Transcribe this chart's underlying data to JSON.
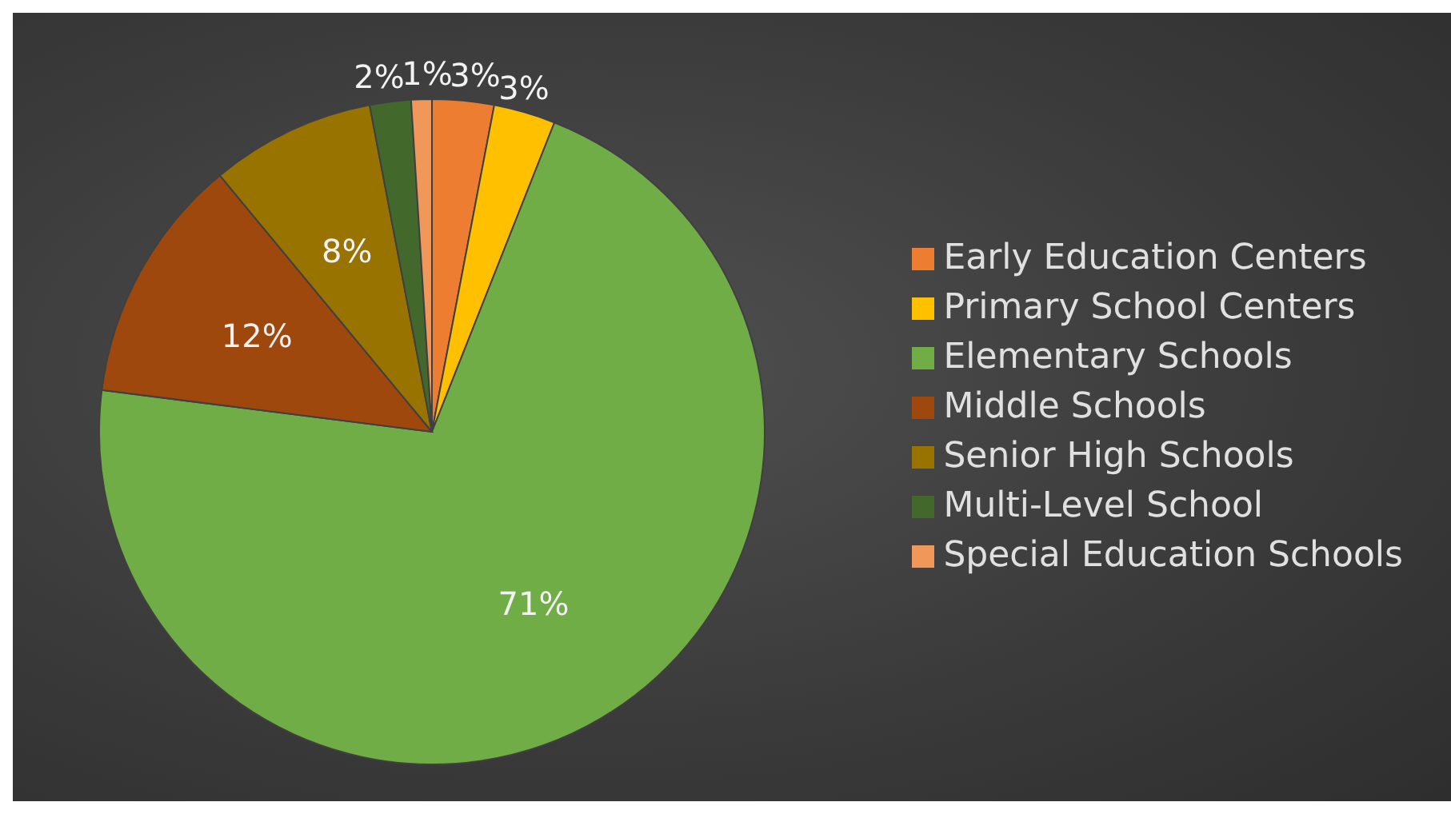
{
  "chart_data": {
    "type": "pie",
    "categories": [
      "Early Education Centers",
      "Primary School Centers",
      "Elementary Schools",
      "Middle Schools",
      "Senior High Schools",
      "Multi-Level School",
      "Special Education Schools"
    ],
    "values": [
      3,
      3,
      71,
      12,
      8,
      2,
      1
    ],
    "colors": [
      "#ed7d31",
      "#ffc000",
      "#70ad47",
      "#9e480e",
      "#997300",
      "#43682b",
      "#f1975a"
    ],
    "value_labels": [
      "3%",
      "3%",
      "71%",
      "12%",
      "8%",
      "2%",
      "1%"
    ],
    "legend": "right"
  }
}
